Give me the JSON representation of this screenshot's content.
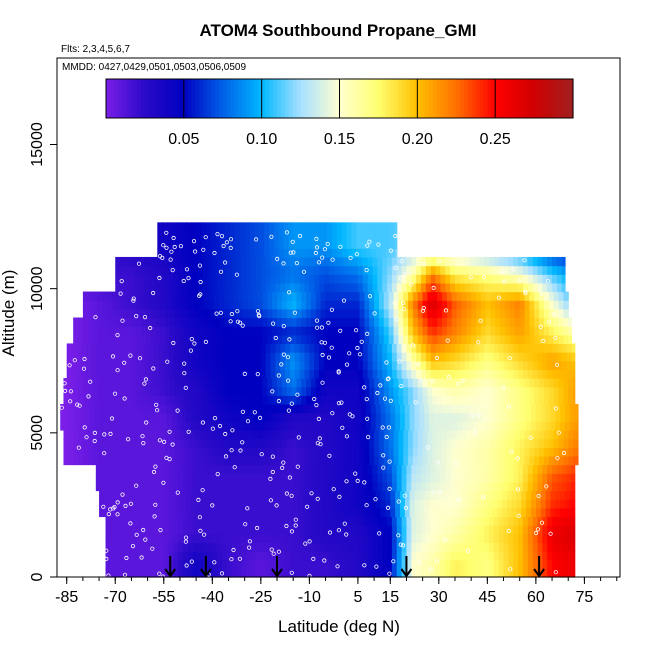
{
  "chart_data": {
    "type": "heatmap",
    "title": "ATOM4 Southbound Propane_GMI",
    "subtitle_flights": "Flts: 2,3,4,5,6,7",
    "subtitle_dates": "MMDD: 0427,0429,0501,0503,0506,0509",
    "xlabel": "Latitude (deg N)",
    "ylabel": "Altitude (m)",
    "xlim": [
      -88,
      86
    ],
    "ylim": [
      0,
      18000
    ],
    "x_ticks": [
      "-85",
      "-70",
      "-55",
      "-40",
      "-25",
      "-10",
      "5",
      "15",
      "30",
      "45",
      "60",
      "75"
    ],
    "y_ticks": [
      "0",
      "5000",
      "10000",
      "15000"
    ],
    "colorbar_ticks": [
      "0.05",
      "0.10",
      "0.15",
      "0.20",
      "0.25"
    ],
    "colorbar_range": [
      0.0,
      0.3
    ],
    "colorbar_colors": [
      "#7a1ee8",
      "#2a0ac8",
      "#0000c0",
      "#0060e8",
      "#00b8ff",
      "#a8e0ff",
      "#ffffd0",
      "#ffff70",
      "#ffc000",
      "#ff7000",
      "#ff0000",
      "#d00000",
      "#a02020"
    ],
    "curtain_grid": {
      "lat": [
        -85,
        -75,
        -65,
        -55,
        -45,
        -35,
        -25,
        -15,
        -5,
        5,
        15,
        22,
        28,
        35,
        45,
        55,
        65,
        72
      ],
      "alt": [
        500,
        1500,
        2500,
        3500,
        4500,
        5500,
        6500,
        7500,
        8500,
        9500,
        10500,
        11500
      ],
      "propane": [
        [
          0.0,
          0.01,
          0.01,
          0.01,
          0.04,
          0.02,
          0.01,
          0.02,
          0.02,
          0.03,
          0.05,
          0.15,
          0.16,
          0.18,
          0.17,
          0.2,
          0.25,
          0.26
        ],
        [
          0.0,
          0.01,
          0.01,
          0.01,
          0.02,
          0.02,
          0.02,
          0.02,
          0.03,
          0.03,
          0.05,
          0.14,
          0.15,
          0.16,
          0.18,
          0.2,
          0.26,
          0.27
        ],
        [
          0.0,
          0.01,
          0.01,
          0.01,
          0.02,
          0.02,
          0.02,
          0.02,
          0.03,
          0.04,
          0.06,
          0.14,
          0.15,
          0.15,
          0.17,
          0.19,
          0.24,
          0.25
        ],
        [
          0.0,
          0.01,
          0.01,
          0.01,
          0.02,
          0.02,
          0.02,
          0.02,
          0.03,
          0.04,
          0.07,
          0.13,
          0.14,
          0.15,
          0.16,
          0.18,
          0.23,
          0.24
        ],
        [
          0.0,
          0.01,
          0.01,
          0.01,
          0.02,
          0.03,
          0.03,
          0.02,
          0.03,
          0.04,
          0.08,
          0.12,
          0.14,
          0.15,
          0.16,
          0.18,
          0.2,
          0.22
        ],
        [
          0.0,
          0.01,
          0.01,
          0.01,
          0.03,
          0.04,
          0.05,
          0.03,
          0.03,
          0.04,
          0.08,
          0.12,
          0.14,
          0.14,
          0.15,
          0.17,
          0.19,
          0.21
        ],
        [
          0.0,
          0.01,
          0.01,
          0.02,
          0.03,
          0.05,
          0.05,
          0.08,
          0.04,
          0.04,
          0.09,
          0.12,
          0.15,
          0.16,
          0.15,
          0.17,
          0.19,
          0.21
        ],
        [
          0.0,
          0.01,
          0.01,
          0.02,
          0.04,
          0.05,
          0.05,
          0.09,
          0.05,
          0.05,
          0.1,
          0.16,
          0.2,
          0.19,
          0.17,
          0.19,
          0.21,
          0.2
        ],
        [
          0.0,
          0.01,
          0.01,
          0.02,
          0.04,
          0.05,
          0.05,
          0.06,
          0.05,
          0.05,
          0.11,
          0.2,
          0.24,
          0.22,
          0.19,
          0.21,
          0.18,
          0.16
        ],
        [
          0.0,
          0.01,
          0.02,
          0.03,
          0.05,
          0.06,
          0.07,
          0.1,
          0.06,
          0.06,
          0.13,
          0.22,
          0.27,
          0.23,
          0.2,
          0.22,
          0.15,
          0.11
        ],
        [
          0.01,
          0.02,
          0.02,
          0.03,
          0.05,
          0.06,
          0.07,
          0.08,
          0.07,
          0.08,
          0.12,
          0.16,
          0.22,
          0.18,
          0.17,
          0.15,
          0.11,
          0.09
        ],
        [
          0.01,
          0.02,
          0.03,
          0.04,
          0.05,
          0.06,
          0.07,
          0.09,
          0.09,
          0.11,
          0.11,
          0.12,
          0.12,
          0.12,
          0.1,
          0.08,
          0.05,
          0.04
        ]
      ],
      "lat_extent_by_alt": [
        [
          -73,
          72
        ],
        [
          -73,
          72
        ],
        [
          -75,
          72
        ],
        [
          -76,
          72
        ],
        [
          -86,
          73
        ],
        [
          -87,
          73
        ],
        [
          -86,
          72
        ],
        [
          -85,
          72
        ],
        [
          -83,
          71
        ],
        [
          -80,
          70
        ],
        [
          -70,
          69
        ],
        [
          -57,
          17
        ]
      ]
    },
    "arrow_latitudes": [
      -53,
      -42,
      -20,
      20,
      61
    ]
  }
}
